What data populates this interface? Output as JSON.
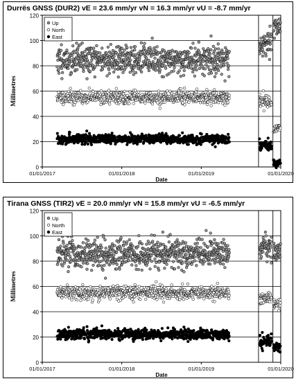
{
  "chart_data": [
    {
      "type": "scatter",
      "title": "Durrës GNSS (DUR2)    vE = 23.6 mm/yr   vN = 16.3 mm/yr   vU = -8.7 mm/yr",
      "xlabel": "Date",
      "ylabel": "Millimetres",
      "ylim": [
        0,
        120
      ],
      "yticks": [
        0,
        20,
        40,
        60,
        80,
        100,
        120
      ],
      "xlim": [
        "2017-01-01",
        "2020-01-01"
      ],
      "xtick_labels": [
        "01/01/2017",
        "01/01/2018",
        "01/01/2019",
        "01/01/2020"
      ],
      "grid": true,
      "legend_position": "top-left",
      "event_lines": [
        "2019-09-21",
        "2019-11-26"
      ],
      "series": [
        {
          "name": "Up",
          "segments": [
            {
              "x_range": [
                "2017-03-10",
                "2019-05-10"
              ],
              "center": 85,
              "spread": 6
            },
            {
              "x_range": [
                "2019-09-25",
                "2019-11-20"
              ],
              "center": 96,
              "spread": 5
            },
            {
              "x_range": [
                "2019-11-28",
                "2019-12-31"
              ],
              "center": 110,
              "spread": 4
            }
          ]
        },
        {
          "name": "North",
          "segments": [
            {
              "x_range": [
                "2017-03-10",
                "2019-05-10"
              ],
              "center": 55,
              "spread": 2.5
            },
            {
              "x_range": [
                "2019-09-25",
                "2019-11-20"
              ],
              "center": 52,
              "spread": 2.5
            },
            {
              "x_range": [
                "2019-11-28",
                "2019-12-31"
              ],
              "center": 30,
              "spread": 2
            }
          ]
        },
        {
          "name": "East",
          "segments": [
            {
              "x_range": [
                "2017-03-10",
                "2019-05-10"
              ],
              "center": 22,
              "spread": 1.8
            },
            {
              "x_range": [
                "2019-09-25",
                "2019-11-20"
              ],
              "center": 17,
              "spread": 2.5
            },
            {
              "x_range": [
                "2019-11-28",
                "2019-12-31"
              ],
              "center": 3,
              "spread": 1.5
            }
          ]
        }
      ]
    },
    {
      "type": "scatter",
      "title": "Tirana GNSS (TIR2)    vE = 20.0 mm/yr   vN = 15.8 mm/yr   vU = -6.5 mm/yr",
      "xlabel": "Date",
      "ylabel": "Millimetres",
      "ylim": [
        0,
        120
      ],
      "yticks": [
        0,
        20,
        40,
        60,
        80,
        100,
        120
      ],
      "xlim": [
        "2017-01-01",
        "2020-01-01"
      ],
      "xtick_labels": [
        "01/01/2017",
        "01/01/2018",
        "01/01/2019",
        "01/01/2020"
      ],
      "grid": true,
      "legend_position": "top-left",
      "event_lines": [
        "2019-09-21",
        "2019-11-26"
      ],
      "series": [
        {
          "name": "Up",
          "segments": [
            {
              "x_range": [
                "2017-03-10",
                "2019-05-10"
              ],
              "center": 86,
              "spread": 6
            },
            {
              "x_range": [
                "2019-09-25",
                "2019-11-20"
              ],
              "center": 91,
              "spread": 5
            },
            {
              "x_range": [
                "2019-11-28",
                "2019-12-31"
              ],
              "center": 88,
              "spread": 4
            }
          ]
        },
        {
          "name": "North",
          "segments": [
            {
              "x_range": [
                "2017-03-10",
                "2019-05-10"
              ],
              "center": 55,
              "spread": 2.5
            },
            {
              "x_range": [
                "2019-09-25",
                "2019-11-20"
              ],
              "center": 51,
              "spread": 2.5
            },
            {
              "x_range": [
                "2019-11-28",
                "2019-12-31"
              ],
              "center": 46,
              "spread": 2
            }
          ]
        },
        {
          "name": "East",
          "segments": [
            {
              "x_range": [
                "2017-03-10",
                "2019-05-10"
              ],
              "center": 22,
              "spread": 2.2
            },
            {
              "x_range": [
                "2019-09-25",
                "2019-11-20"
              ],
              "center": 17,
              "spread": 2.5
            },
            {
              "x_range": [
                "2019-11-28",
                "2019-12-31"
              ],
              "center": 13,
              "spread": 2
            }
          ]
        }
      ]
    }
  ]
}
